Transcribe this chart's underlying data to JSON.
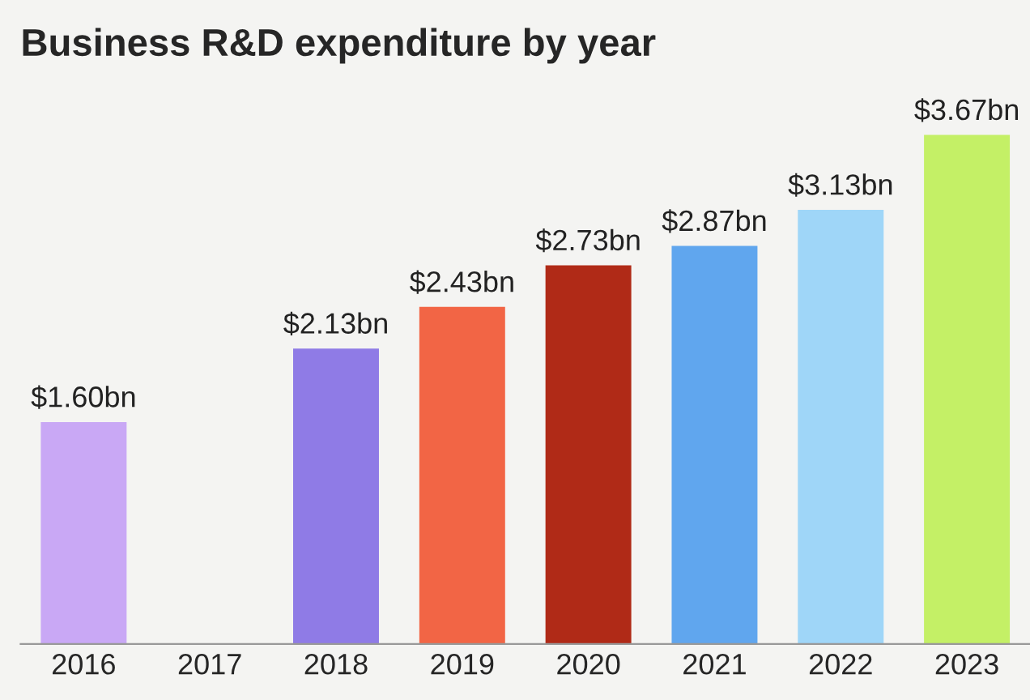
{
  "chart_data": {
    "type": "bar",
    "title": "Business R&D expenditure by year",
    "categories": [
      "2016",
      "2017",
      "2018",
      "2019",
      "2020",
      "2021",
      "2022",
      "2023"
    ],
    "values": [
      1.6,
      null,
      2.13,
      2.43,
      2.73,
      2.87,
      3.13,
      3.67
    ],
    "colors": [
      "#c9a8f5",
      "#8f7be6",
      "#8f7be6",
      "#f26545",
      "#b02a17",
      "#60a6ee",
      "#9fd6f8",
      "#c4f066"
    ],
    "value_labels": [
      "$1.60bn",
      null,
      "$2.13bn",
      "$2.43bn",
      "$2.73bn",
      "$2.87bn",
      "$3.13bn",
      "$3.67bn"
    ],
    "grid": false,
    "legend": false
  }
}
